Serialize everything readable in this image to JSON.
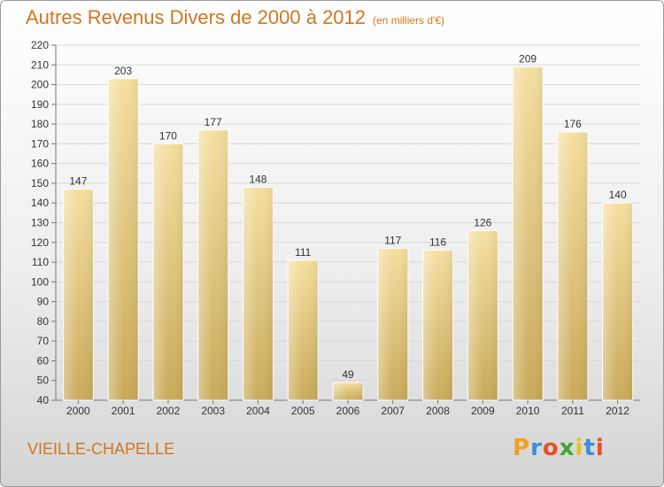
{
  "title": "Autres Revenus Divers de 2000 à 2012",
  "subtitle": "(en milliers d'€)",
  "commune": "VIEILLE-CHAPELLE",
  "logo": {
    "letters": [
      "P",
      "r",
      "o",
      "x",
      "i",
      "t",
      "i"
    ],
    "colors": [
      "#f0a020",
      "#3a8fd8",
      "#e85020",
      "#40a830",
      "#e8c020",
      "#3a8fd8",
      "#e85020"
    ]
  },
  "colors": {
    "bar_light": "#f5dfa0",
    "bar_dark": "#c9aa5a",
    "grid": "#d8d8d8",
    "text": "#333333"
  },
  "chart_data": {
    "type": "bar",
    "categories": [
      "2000",
      "2001",
      "2002",
      "2003",
      "2004",
      "2005",
      "2006",
      "2007",
      "2008",
      "2009",
      "2010",
      "2011",
      "2012"
    ],
    "values": [
      147,
      203,
      170,
      177,
      148,
      111,
      49,
      117,
      116,
      126,
      209,
      176,
      140
    ],
    "title": "Autres Revenus Divers de 2000 à 2012",
    "subtitle": "(en milliers d'€)",
    "xlabel": "",
    "ylabel": "",
    "ylim": [
      40,
      220
    ],
    "yticks": [
      40,
      50,
      60,
      70,
      80,
      90,
      100,
      110,
      120,
      130,
      140,
      150,
      160,
      170,
      180,
      190,
      200,
      210,
      220
    ],
    "grid": true,
    "legend": "none"
  }
}
